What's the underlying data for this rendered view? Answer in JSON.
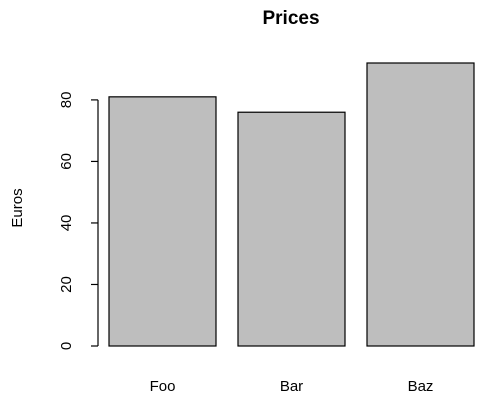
{
  "chart_data": {
    "type": "bar",
    "title": "Prices",
    "xlabel": "",
    "ylabel": "Euros",
    "categories": [
      "Foo",
      "Bar",
      "Baz"
    ],
    "values": [
      81,
      76,
      92
    ],
    "ylim": [
      0,
      92
    ],
    "yticks": [
      0,
      20,
      40,
      60,
      80
    ],
    "bar_color": "#bebebe",
    "border_color": "#000000",
    "grid": false,
    "legend": "none"
  }
}
